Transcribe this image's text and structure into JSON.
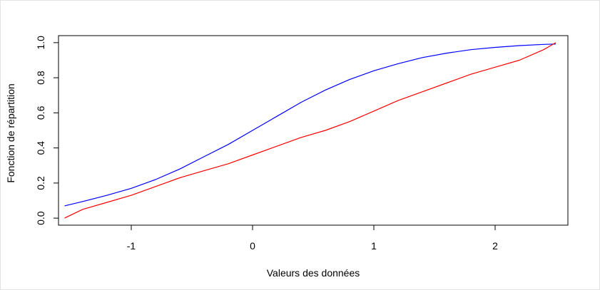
{
  "chart_data": {
    "type": "line",
    "xlabel": "Valeurs des données",
    "ylabel": "Fonction de répartition",
    "xlim": [
      -1.6,
      2.6
    ],
    "ylim": [
      0.0,
      1.0
    ],
    "x_ticks": [
      -1,
      0,
      1,
      2
    ],
    "y_ticks": [
      0.0,
      0.2,
      0.4,
      0.6,
      0.8,
      1.0
    ],
    "x_tick_labels": [
      "-1",
      "0",
      "1",
      "2"
    ],
    "y_tick_labels": [
      "0.0",
      "0.2",
      "0.4",
      "0.6",
      "0.8",
      "1.0"
    ],
    "grid": false,
    "series": [
      {
        "color": "#0000ff",
        "x": [
          -1.55,
          -1.4,
          -1.2,
          -1.0,
          -0.8,
          -0.6,
          -0.4,
          -0.2,
          0.0,
          0.2,
          0.4,
          0.6,
          0.8,
          1.0,
          1.2,
          1.4,
          1.6,
          1.8,
          2.0,
          2.2,
          2.4,
          2.5
        ],
        "values": [
          0.07,
          0.095,
          0.13,
          0.17,
          0.22,
          0.28,
          0.35,
          0.42,
          0.5,
          0.58,
          0.66,
          0.73,
          0.79,
          0.84,
          0.88,
          0.915,
          0.94,
          0.96,
          0.973,
          0.983,
          0.99,
          0.992
        ]
      },
      {
        "color": "#ff0000",
        "x": [
          -1.55,
          -1.4,
          -1.2,
          -1.0,
          -0.8,
          -0.6,
          -0.4,
          -0.2,
          0.0,
          0.2,
          0.4,
          0.6,
          0.8,
          1.0,
          1.2,
          1.4,
          1.6,
          1.8,
          2.0,
          2.2,
          2.4,
          2.5
        ],
        "values": [
          0.0,
          0.05,
          0.09,
          0.13,
          0.18,
          0.23,
          0.27,
          0.31,
          0.36,
          0.41,
          0.46,
          0.5,
          0.55,
          0.61,
          0.67,
          0.72,
          0.77,
          0.82,
          0.86,
          0.9,
          0.96,
          1.0
        ]
      }
    ]
  }
}
